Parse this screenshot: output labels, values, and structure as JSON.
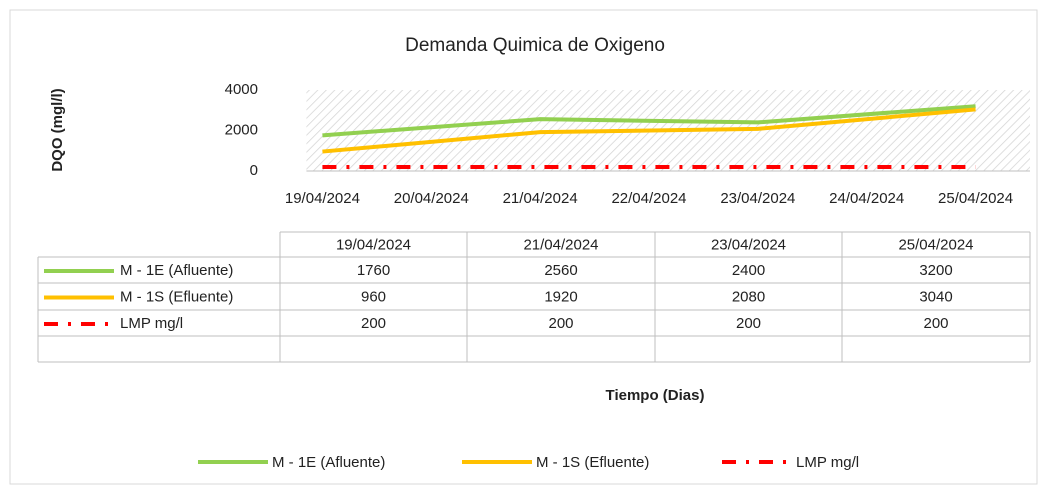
{
  "chart_data": {
    "type": "line",
    "title": "Demanda Quimica de Oxigeno",
    "y_label": "DQO (mgl/l)",
    "x_label": "Tiempo (Dias)",
    "categories": [
      "19/04/2024",
      "20/04/2024",
      "21/04/2024",
      "22/04/2024",
      "23/04/2024",
      "24/04/2024",
      "25/04/2024"
    ],
    "x": [
      "19/04/2024",
      "21/04/2024",
      "23/04/2024",
      "25/04/2024"
    ],
    "series": [
      {
        "name": "M - 1E (Afluente)",
        "color": "#92d050",
        "dash": "solid",
        "values": [
          1760,
          2560,
          2400,
          3200
        ]
      },
      {
        "name": "M - 1S (Efluente)",
        "color": "#ffc000",
        "dash": "solid",
        "values": [
          960,
          1920,
          2080,
          3040
        ]
      },
      {
        "name": "LMP mg/l",
        "color": "#ff0000",
        "dash": "dash-dot",
        "values": [
          200,
          200,
          200,
          200
        ]
      }
    ],
    "ylim": [
      0,
      4000
    ],
    "yticks": [
      0,
      2000,
      4000
    ],
    "grid": false,
    "data_table": true,
    "legend": "bottom"
  }
}
